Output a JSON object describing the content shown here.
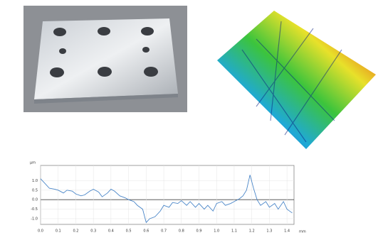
{
  "chart_data": {
    "type": "line",
    "y_label": "μm",
    "x_label": "mm",
    "x": [
      0.0,
      0.02,
      0.05,
      0.08,
      0.1,
      0.13,
      0.15,
      0.18,
      0.2,
      0.23,
      0.25,
      0.28,
      0.3,
      0.33,
      0.35,
      0.38,
      0.4,
      0.42,
      0.45,
      0.48,
      0.5,
      0.53,
      0.55,
      0.58,
      0.6,
      0.62,
      0.65,
      0.68,
      0.7,
      0.73,
      0.75,
      0.78,
      0.8,
      0.83,
      0.85,
      0.88,
      0.9,
      0.93,
      0.95,
      0.98,
      1.0,
      1.03,
      1.05,
      1.08,
      1.1,
      1.13,
      1.15,
      1.17,
      1.19,
      1.21,
      1.23,
      1.25,
      1.28,
      1.3,
      1.33,
      1.35,
      1.38,
      1.4,
      1.43
    ],
    "values": [
      1.1,
      0.9,
      0.6,
      0.55,
      0.5,
      0.35,
      0.5,
      0.45,
      0.3,
      0.2,
      0.25,
      0.45,
      0.55,
      0.4,
      0.15,
      0.35,
      0.55,
      0.45,
      0.2,
      0.1,
      0.0,
      -0.1,
      -0.3,
      -0.5,
      -1.2,
      -1.0,
      -0.9,
      -0.6,
      -0.3,
      -0.4,
      -0.15,
      -0.2,
      -0.05,
      -0.3,
      -0.1,
      -0.4,
      -0.2,
      -0.5,
      -0.3,
      -0.6,
      -0.2,
      -0.1,
      -0.3,
      -0.2,
      -0.1,
      0.05,
      0.2,
      0.5,
      1.3,
      0.6,
      0.0,
      -0.3,
      -0.1,
      -0.4,
      -0.2,
      -0.5,
      -0.1,
      -0.5,
      -0.7
    ],
    "color": "#4a86c8",
    "xlim": [
      0,
      1.44
    ],
    "ylim": [
      -1.3,
      1.8
    ],
    "xticks": [
      {
        "value": 0,
        "label": "0.0"
      },
      0.1,
      0.2,
      0.3,
      0.4,
      0.5,
      0.6,
      0.7,
      0.8,
      0.9,
      {
        "value": 1,
        "label": "1.0"
      },
      1.1,
      1.2,
      1.3,
      1.4
    ],
    "yticks": [
      {
        "value": 1,
        "label": "1.0"
      },
      0.5,
      {
        "value": 0,
        "label": "0.0"
      },
      -0.5,
      {
        "value": -1,
        "label": "-1.0"
      }
    ],
    "grid": true
  }
}
